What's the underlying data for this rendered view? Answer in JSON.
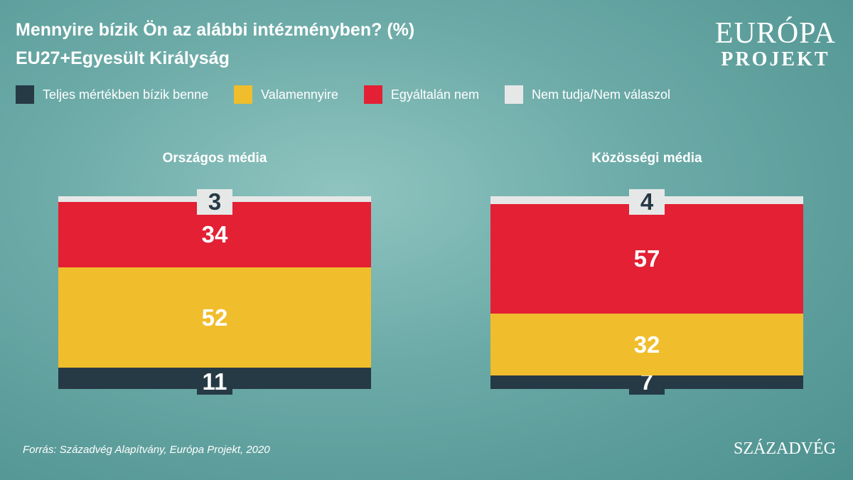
{
  "title": "Mennyire bízik Ön az alábbi intézményben? (%)",
  "subtitle": "EU27+Egyesült Királyság",
  "logo": {
    "line1": "EURÓPA",
    "line2": "PROJEKT"
  },
  "source": "Forrás: Századvég Alapítvány, Európa Projekt, 2020",
  "publisher": "SZÁZADVÉG",
  "chart_data": {
    "type": "stacked-bar",
    "title": "Mennyire bízik Ön az alábbi intézményben? (%)",
    "subtitle": "EU27+Egyesült Királyság",
    "legend_position": "top",
    "series": [
      {
        "name": "Teljes mértékben bízik benne",
        "color": "#263a45"
      },
      {
        "name": "Valamennyire",
        "color": "#f0bd2c"
      },
      {
        "name": "Egyáltalán nem",
        "color": "#e32034"
      },
      {
        "name": "Nem tudja/Nem válaszol",
        "color": "#e6e8e8"
      }
    ],
    "categories": [
      {
        "name": "Országos média",
        "values": [
          11,
          52,
          34,
          3
        ]
      },
      {
        "name": "Közösségi média",
        "values": [
          7,
          32,
          57,
          4
        ]
      }
    ]
  }
}
